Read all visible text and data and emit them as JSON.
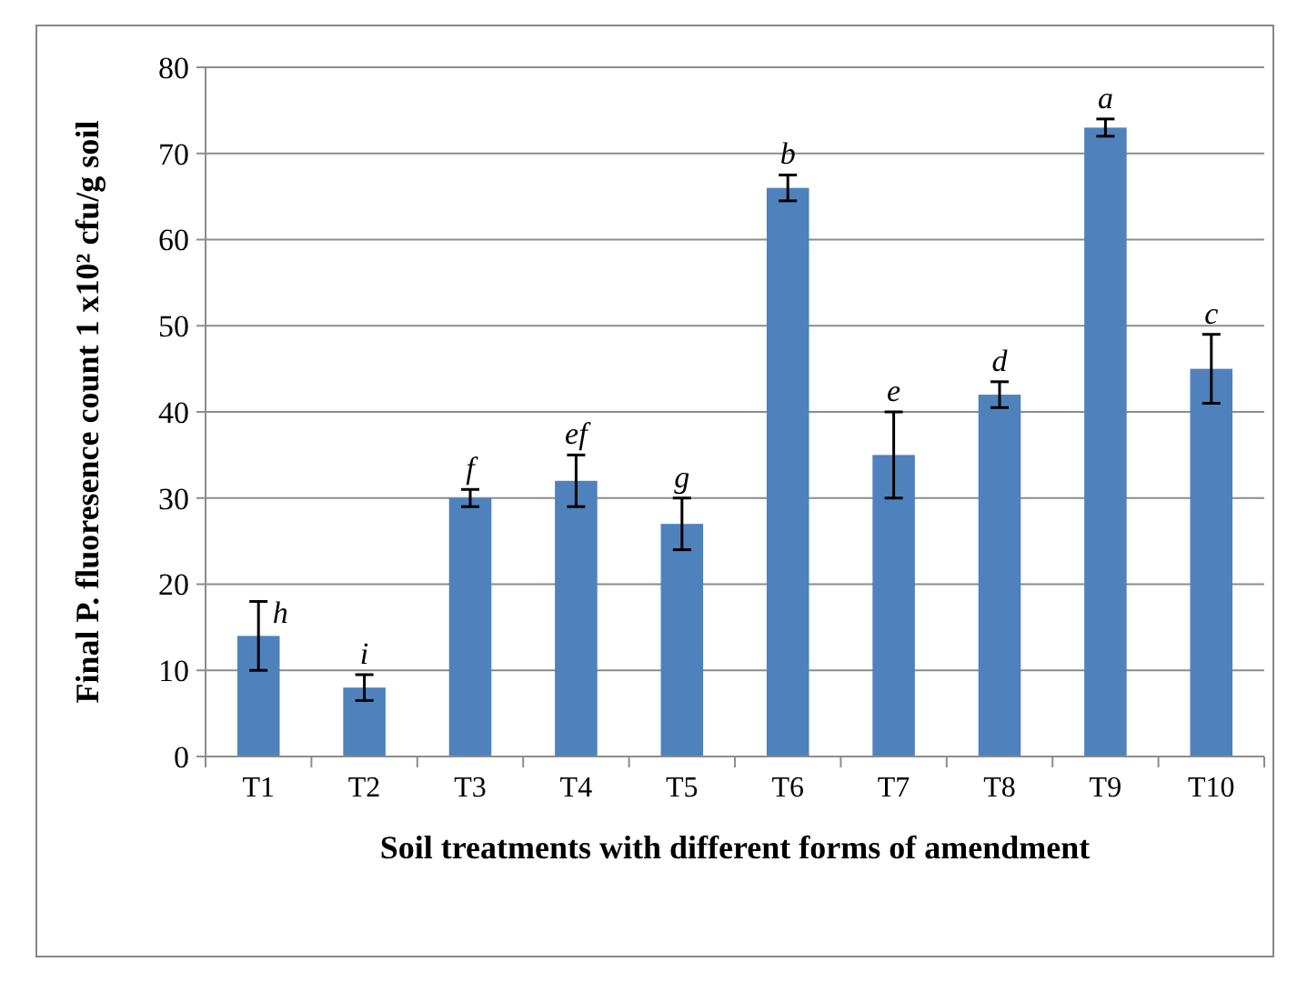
{
  "chart_data": {
    "type": "bar",
    "xlabel": "Soil treatments with different forms of amendment",
    "ylabel": "Final P. fluoresence count 1 x10² cfu/g soil",
    "categories": [
      "T1",
      "T2",
      "T3",
      "T4",
      "T5",
      "T6",
      "T7",
      "T8",
      "T9",
      "T10"
    ],
    "values": [
      14,
      8,
      30,
      32,
      27,
      66,
      35,
      42,
      73,
      45
    ],
    "errors": [
      4,
      1.5,
      1,
      3,
      3,
      1.5,
      5,
      1.5,
      1,
      4
    ],
    "color": "#4f81bd",
    "ylim": [
      0,
      80
    ],
    "yticks": [
      0,
      10,
      20,
      30,
      40,
      50,
      60,
      70,
      80
    ],
    "grid": "y",
    "annotations": [
      {
        "text": "h",
        "x": "T1",
        "y": 18
      },
      {
        "text": "i",
        "x": "T2",
        "y": 9.5
      },
      {
        "text": "f",
        "x": "T3",
        "y": 31
      },
      {
        "text": "ef",
        "x": "T4",
        "y": 35
      },
      {
        "text": "g",
        "x": "T5",
        "y": 30
      },
      {
        "text": "b",
        "x": "T6",
        "y": 67.5
      },
      {
        "text": "e",
        "x": "T7",
        "y": 40
      },
      {
        "text": "d",
        "x": "T8",
        "y": 43.5
      },
      {
        "text": "a",
        "x": "T9",
        "y": 74
      },
      {
        "text": "c",
        "x": "T10",
        "y": 49
      }
    ]
  }
}
